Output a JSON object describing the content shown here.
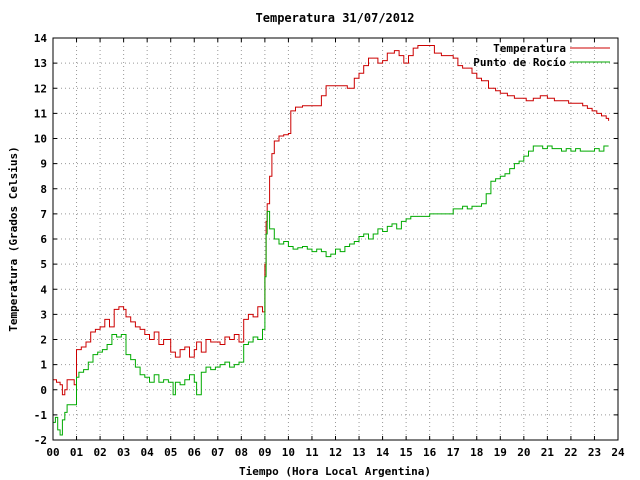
{
  "chart_data": {
    "type": "line",
    "title": "Temperatura 31/07/2012",
    "xlabel": "Tiempo (Hora Local Argentina)",
    "ylabel": "Temperatura (Grados Celsius)",
    "xlim": [
      0,
      24
    ],
    "ylim": [
      -2,
      14
    ],
    "x_ticks": [
      "00",
      "01",
      "02",
      "03",
      "04",
      "05",
      "06",
      "07",
      "08",
      "09",
      "10",
      "11",
      "12",
      "13",
      "14",
      "15",
      "16",
      "17",
      "18",
      "19",
      "20",
      "21",
      "22",
      "23",
      "24"
    ],
    "y_ticks": [
      -2,
      -1,
      0,
      1,
      2,
      3,
      4,
      5,
      6,
      7,
      8,
      9,
      10,
      11,
      12,
      13,
      14
    ],
    "grid": true,
    "legend_position": "top-right",
    "series": [
      {
        "name": "Temperatura",
        "color": "#cc0000",
        "points": [
          [
            0.0,
            0.4
          ],
          [
            0.15,
            0.3
          ],
          [
            0.3,
            0.2
          ],
          [
            0.4,
            -0.2
          ],
          [
            0.5,
            0.0
          ],
          [
            0.6,
            0.4
          ],
          [
            0.75,
            0.4
          ],
          [
            0.9,
            0.2
          ],
          [
            1.0,
            1.6
          ],
          [
            1.2,
            1.7
          ],
          [
            1.4,
            1.9
          ],
          [
            1.6,
            2.3
          ],
          [
            1.8,
            2.4
          ],
          [
            2.0,
            2.5
          ],
          [
            2.2,
            2.8
          ],
          [
            2.4,
            2.5
          ],
          [
            2.6,
            3.2
          ],
          [
            2.8,
            3.3
          ],
          [
            3.0,
            3.2
          ],
          [
            3.1,
            2.9
          ],
          [
            3.3,
            2.7
          ],
          [
            3.5,
            2.5
          ],
          [
            3.7,
            2.4
          ],
          [
            3.9,
            2.2
          ],
          [
            4.1,
            2.0
          ],
          [
            4.3,
            2.3
          ],
          [
            4.5,
            1.8
          ],
          [
            4.7,
            2.0
          ],
          [
            4.9,
            2.0
          ],
          [
            5.0,
            1.5
          ],
          [
            5.2,
            1.3
          ],
          [
            5.4,
            1.6
          ],
          [
            5.6,
            1.7
          ],
          [
            5.8,
            1.3
          ],
          [
            6.0,
            1.6
          ],
          [
            6.1,
            1.9
          ],
          [
            6.3,
            1.5
          ],
          [
            6.5,
            2.0
          ],
          [
            6.7,
            1.9
          ],
          [
            6.9,
            1.9
          ],
          [
            7.1,
            1.8
          ],
          [
            7.3,
            2.1
          ],
          [
            7.5,
            2.0
          ],
          [
            7.7,
            2.2
          ],
          [
            7.9,
            1.9
          ],
          [
            8.1,
            2.8
          ],
          [
            8.3,
            3.0
          ],
          [
            8.5,
            2.9
          ],
          [
            8.7,
            3.3
          ],
          [
            8.9,
            3.1
          ],
          [
            9.0,
            5.0
          ],
          [
            9.05,
            6.7
          ],
          [
            9.1,
            7.4
          ],
          [
            9.2,
            8.5
          ],
          [
            9.3,
            9.4
          ],
          [
            9.4,
            9.9
          ],
          [
            9.6,
            10.1
          ],
          [
            9.8,
            10.15
          ],
          [
            10.0,
            10.2
          ],
          [
            10.1,
            11.1
          ],
          [
            10.3,
            11.25
          ],
          [
            10.6,
            11.3
          ],
          [
            11.0,
            11.3
          ],
          [
            11.2,
            11.3
          ],
          [
            11.4,
            11.7
          ],
          [
            11.6,
            12.1
          ],
          [
            12.0,
            12.1
          ],
          [
            12.3,
            12.1
          ],
          [
            12.5,
            12.0
          ],
          [
            12.8,
            12.4
          ],
          [
            13.0,
            12.6
          ],
          [
            13.2,
            12.9
          ],
          [
            13.4,
            13.2
          ],
          [
            13.6,
            13.2
          ],
          [
            13.8,
            13.0
          ],
          [
            14.0,
            13.1
          ],
          [
            14.2,
            13.4
          ],
          [
            14.5,
            13.5
          ],
          [
            14.7,
            13.3
          ],
          [
            14.9,
            13.0
          ],
          [
            15.1,
            13.3
          ],
          [
            15.3,
            13.6
          ],
          [
            15.5,
            13.7
          ],
          [
            15.7,
            13.7
          ],
          [
            16.0,
            13.7
          ],
          [
            16.2,
            13.4
          ],
          [
            16.5,
            13.3
          ],
          [
            16.8,
            13.3
          ],
          [
            17.0,
            13.2
          ],
          [
            17.2,
            12.9
          ],
          [
            17.4,
            12.8
          ],
          [
            17.6,
            12.8
          ],
          [
            17.8,
            12.6
          ],
          [
            18.0,
            12.4
          ],
          [
            18.2,
            12.3
          ],
          [
            18.5,
            12.0
          ],
          [
            18.8,
            11.9
          ],
          [
            19.0,
            11.8
          ],
          [
            19.3,
            11.7
          ],
          [
            19.6,
            11.6
          ],
          [
            19.9,
            11.6
          ],
          [
            20.1,
            11.5
          ],
          [
            20.4,
            11.6
          ],
          [
            20.7,
            11.7
          ],
          [
            21.0,
            11.6
          ],
          [
            21.3,
            11.5
          ],
          [
            21.6,
            11.5
          ],
          [
            21.9,
            11.4
          ],
          [
            22.2,
            11.4
          ],
          [
            22.5,
            11.3
          ],
          [
            22.7,
            11.2
          ],
          [
            22.9,
            11.1
          ],
          [
            23.1,
            11.0
          ],
          [
            23.3,
            10.9
          ],
          [
            23.5,
            10.8
          ],
          [
            23.6,
            10.7
          ]
        ]
      },
      {
        "name": "Punto de Rocío",
        "color": "#00aa00",
        "points": [
          [
            0.0,
            -1.3
          ],
          [
            0.1,
            -1.1
          ],
          [
            0.2,
            -1.6
          ],
          [
            0.3,
            -1.8
          ],
          [
            0.4,
            -1.2
          ],
          [
            0.5,
            -0.9
          ],
          [
            0.6,
            -0.6
          ],
          [
            0.8,
            -0.6
          ],
          [
            1.0,
            0.5
          ],
          [
            1.1,
            0.7
          ],
          [
            1.3,
            0.8
          ],
          [
            1.5,
            1.1
          ],
          [
            1.7,
            1.4
          ],
          [
            1.9,
            1.5
          ],
          [
            2.1,
            1.6
          ],
          [
            2.3,
            1.8
          ],
          [
            2.5,
            2.2
          ],
          [
            2.7,
            2.1
          ],
          [
            2.9,
            2.2
          ],
          [
            3.1,
            1.4
          ],
          [
            3.3,
            1.2
          ],
          [
            3.5,
            0.9
          ],
          [
            3.7,
            0.6
          ],
          [
            3.9,
            0.5
          ],
          [
            4.1,
            0.3
          ],
          [
            4.3,
            0.6
          ],
          [
            4.5,
            0.3
          ],
          [
            4.7,
            0.4
          ],
          [
            4.9,
            0.3
          ],
          [
            5.1,
            -0.2
          ],
          [
            5.2,
            0.3
          ],
          [
            5.4,
            0.2
          ],
          [
            5.6,
            0.4
          ],
          [
            5.8,
            0.6
          ],
          [
            6.0,
            0.3
          ],
          [
            6.1,
            -0.2
          ],
          [
            6.3,
            0.7
          ],
          [
            6.5,
            0.9
          ],
          [
            6.7,
            0.8
          ],
          [
            6.9,
            0.9
          ],
          [
            7.1,
            1.0
          ],
          [
            7.3,
            1.1
          ],
          [
            7.5,
            0.9
          ],
          [
            7.7,
            1.0
          ],
          [
            7.9,
            1.1
          ],
          [
            8.1,
            1.8
          ],
          [
            8.3,
            1.9
          ],
          [
            8.5,
            2.1
          ],
          [
            8.7,
            2.0
          ],
          [
            8.9,
            2.4
          ],
          [
            9.0,
            4.5
          ],
          [
            9.05,
            6.2
          ],
          [
            9.1,
            7.1
          ],
          [
            9.2,
            6.4
          ],
          [
            9.4,
            6.0
          ],
          [
            9.6,
            5.8
          ],
          [
            9.8,
            5.9
          ],
          [
            10.0,
            5.7
          ],
          [
            10.2,
            5.6
          ],
          [
            10.4,
            5.65
          ],
          [
            10.6,
            5.7
          ],
          [
            10.8,
            5.6
          ],
          [
            11.0,
            5.5
          ],
          [
            11.2,
            5.6
          ],
          [
            11.4,
            5.5
          ],
          [
            11.6,
            5.3
          ],
          [
            11.8,
            5.4
          ],
          [
            12.0,
            5.6
          ],
          [
            12.2,
            5.5
          ],
          [
            12.4,
            5.7
          ],
          [
            12.6,
            5.8
          ],
          [
            12.8,
            5.9
          ],
          [
            13.0,
            6.1
          ],
          [
            13.2,
            6.2
          ],
          [
            13.4,
            6.0
          ],
          [
            13.6,
            6.2
          ],
          [
            13.8,
            6.4
          ],
          [
            14.0,
            6.3
          ],
          [
            14.2,
            6.5
          ],
          [
            14.4,
            6.6
          ],
          [
            14.6,
            6.4
          ],
          [
            14.8,
            6.7
          ],
          [
            15.0,
            6.8
          ],
          [
            15.2,
            6.9
          ],
          [
            15.4,
            6.9
          ],
          [
            15.6,
            6.9
          ],
          [
            15.8,
            6.9
          ],
          [
            16.0,
            7.0
          ],
          [
            16.2,
            7.0
          ],
          [
            16.4,
            7.0
          ],
          [
            16.6,
            7.0
          ],
          [
            16.8,
            7.0
          ],
          [
            17.0,
            7.2
          ],
          [
            17.2,
            7.2
          ],
          [
            17.4,
            7.3
          ],
          [
            17.6,
            7.2
          ],
          [
            17.8,
            7.3
          ],
          [
            18.0,
            7.3
          ],
          [
            18.2,
            7.4
          ],
          [
            18.4,
            7.8
          ],
          [
            18.6,
            8.3
          ],
          [
            18.8,
            8.4
          ],
          [
            19.0,
            8.5
          ],
          [
            19.2,
            8.6
          ],
          [
            19.4,
            8.8
          ],
          [
            19.6,
            9.0
          ],
          [
            19.8,
            9.1
          ],
          [
            20.0,
            9.3
          ],
          [
            20.2,
            9.5
          ],
          [
            20.4,
            9.7
          ],
          [
            20.6,
            9.7
          ],
          [
            20.8,
            9.6
          ],
          [
            21.0,
            9.7
          ],
          [
            21.2,
            9.6
          ],
          [
            21.4,
            9.6
          ],
          [
            21.6,
            9.5
          ],
          [
            21.8,
            9.6
          ],
          [
            22.0,
            9.5
          ],
          [
            22.2,
            9.6
          ],
          [
            22.4,
            9.5
          ],
          [
            22.6,
            9.5
          ],
          [
            22.8,
            9.5
          ],
          [
            23.0,
            9.6
          ],
          [
            23.2,
            9.5
          ],
          [
            23.4,
            9.7
          ],
          [
            23.6,
            9.7
          ]
        ]
      }
    ]
  }
}
